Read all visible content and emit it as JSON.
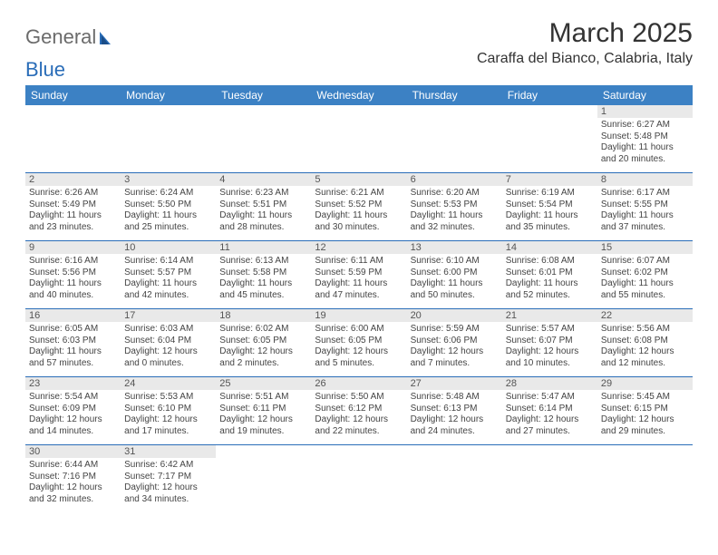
{
  "logo": {
    "text1": "General",
    "text2": "Blue"
  },
  "title": "March 2025",
  "subtitle": "Caraffa del Bianco, Calabria, Italy",
  "colors": {
    "header_bg": "#3c81c4",
    "border": "#2a6db8",
    "daynum_bg": "#e9e9e9"
  },
  "dow": [
    "Sunday",
    "Monday",
    "Tuesday",
    "Wednesday",
    "Thursday",
    "Friday",
    "Saturday"
  ],
  "weeks": [
    [
      null,
      null,
      null,
      null,
      null,
      null,
      {
        "n": "1",
        "sr": "Sunrise: 6:27 AM",
        "ss": "Sunset: 5:48 PM",
        "dl": "Daylight: 11 hours and 20 minutes."
      }
    ],
    [
      {
        "n": "2",
        "sr": "Sunrise: 6:26 AM",
        "ss": "Sunset: 5:49 PM",
        "dl": "Daylight: 11 hours and 23 minutes."
      },
      {
        "n": "3",
        "sr": "Sunrise: 6:24 AM",
        "ss": "Sunset: 5:50 PM",
        "dl": "Daylight: 11 hours and 25 minutes."
      },
      {
        "n": "4",
        "sr": "Sunrise: 6:23 AM",
        "ss": "Sunset: 5:51 PM",
        "dl": "Daylight: 11 hours and 28 minutes."
      },
      {
        "n": "5",
        "sr": "Sunrise: 6:21 AM",
        "ss": "Sunset: 5:52 PM",
        "dl": "Daylight: 11 hours and 30 minutes."
      },
      {
        "n": "6",
        "sr": "Sunrise: 6:20 AM",
        "ss": "Sunset: 5:53 PM",
        "dl": "Daylight: 11 hours and 32 minutes."
      },
      {
        "n": "7",
        "sr": "Sunrise: 6:19 AM",
        "ss": "Sunset: 5:54 PM",
        "dl": "Daylight: 11 hours and 35 minutes."
      },
      {
        "n": "8",
        "sr": "Sunrise: 6:17 AM",
        "ss": "Sunset: 5:55 PM",
        "dl": "Daylight: 11 hours and 37 minutes."
      }
    ],
    [
      {
        "n": "9",
        "sr": "Sunrise: 6:16 AM",
        "ss": "Sunset: 5:56 PM",
        "dl": "Daylight: 11 hours and 40 minutes."
      },
      {
        "n": "10",
        "sr": "Sunrise: 6:14 AM",
        "ss": "Sunset: 5:57 PM",
        "dl": "Daylight: 11 hours and 42 minutes."
      },
      {
        "n": "11",
        "sr": "Sunrise: 6:13 AM",
        "ss": "Sunset: 5:58 PM",
        "dl": "Daylight: 11 hours and 45 minutes."
      },
      {
        "n": "12",
        "sr": "Sunrise: 6:11 AM",
        "ss": "Sunset: 5:59 PM",
        "dl": "Daylight: 11 hours and 47 minutes."
      },
      {
        "n": "13",
        "sr": "Sunrise: 6:10 AM",
        "ss": "Sunset: 6:00 PM",
        "dl": "Daylight: 11 hours and 50 minutes."
      },
      {
        "n": "14",
        "sr": "Sunrise: 6:08 AM",
        "ss": "Sunset: 6:01 PM",
        "dl": "Daylight: 11 hours and 52 minutes."
      },
      {
        "n": "15",
        "sr": "Sunrise: 6:07 AM",
        "ss": "Sunset: 6:02 PM",
        "dl": "Daylight: 11 hours and 55 minutes."
      }
    ],
    [
      {
        "n": "16",
        "sr": "Sunrise: 6:05 AM",
        "ss": "Sunset: 6:03 PM",
        "dl": "Daylight: 11 hours and 57 minutes."
      },
      {
        "n": "17",
        "sr": "Sunrise: 6:03 AM",
        "ss": "Sunset: 6:04 PM",
        "dl": "Daylight: 12 hours and 0 minutes."
      },
      {
        "n": "18",
        "sr": "Sunrise: 6:02 AM",
        "ss": "Sunset: 6:05 PM",
        "dl": "Daylight: 12 hours and 2 minutes."
      },
      {
        "n": "19",
        "sr": "Sunrise: 6:00 AM",
        "ss": "Sunset: 6:05 PM",
        "dl": "Daylight: 12 hours and 5 minutes."
      },
      {
        "n": "20",
        "sr": "Sunrise: 5:59 AM",
        "ss": "Sunset: 6:06 PM",
        "dl": "Daylight: 12 hours and 7 minutes."
      },
      {
        "n": "21",
        "sr": "Sunrise: 5:57 AM",
        "ss": "Sunset: 6:07 PM",
        "dl": "Daylight: 12 hours and 10 minutes."
      },
      {
        "n": "22",
        "sr": "Sunrise: 5:56 AM",
        "ss": "Sunset: 6:08 PM",
        "dl": "Daylight: 12 hours and 12 minutes."
      }
    ],
    [
      {
        "n": "23",
        "sr": "Sunrise: 5:54 AM",
        "ss": "Sunset: 6:09 PM",
        "dl": "Daylight: 12 hours and 14 minutes."
      },
      {
        "n": "24",
        "sr": "Sunrise: 5:53 AM",
        "ss": "Sunset: 6:10 PM",
        "dl": "Daylight: 12 hours and 17 minutes."
      },
      {
        "n": "25",
        "sr": "Sunrise: 5:51 AM",
        "ss": "Sunset: 6:11 PM",
        "dl": "Daylight: 12 hours and 19 minutes."
      },
      {
        "n": "26",
        "sr": "Sunrise: 5:50 AM",
        "ss": "Sunset: 6:12 PM",
        "dl": "Daylight: 12 hours and 22 minutes."
      },
      {
        "n": "27",
        "sr": "Sunrise: 5:48 AM",
        "ss": "Sunset: 6:13 PM",
        "dl": "Daylight: 12 hours and 24 minutes."
      },
      {
        "n": "28",
        "sr": "Sunrise: 5:47 AM",
        "ss": "Sunset: 6:14 PM",
        "dl": "Daylight: 12 hours and 27 minutes."
      },
      {
        "n": "29",
        "sr": "Sunrise: 5:45 AM",
        "ss": "Sunset: 6:15 PM",
        "dl": "Daylight: 12 hours and 29 minutes."
      }
    ],
    [
      {
        "n": "30",
        "sr": "Sunrise: 6:44 AM",
        "ss": "Sunset: 7:16 PM",
        "dl": "Daylight: 12 hours and 32 minutes."
      },
      {
        "n": "31",
        "sr": "Sunrise: 6:42 AM",
        "ss": "Sunset: 7:17 PM",
        "dl": "Daylight: 12 hours and 34 minutes."
      },
      null,
      null,
      null,
      null,
      null
    ]
  ]
}
